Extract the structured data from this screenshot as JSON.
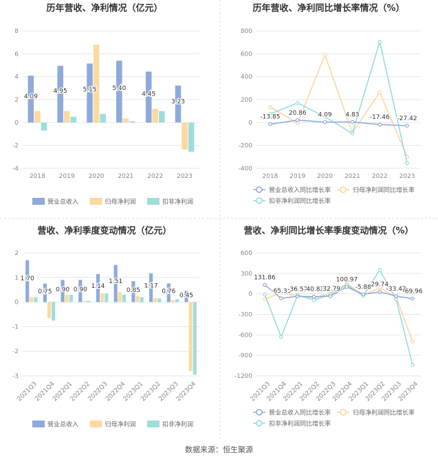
{
  "footer": {
    "source": "数据来源：恒生聚源"
  },
  "colors": {
    "revenue": "#8eaadb",
    "net_profit": "#fdd9a0",
    "deducted_profit": "#9ddedc",
    "axis_text": "#888888",
    "grid": "#e6e6e6",
    "title": "#333333",
    "divider": "#dddddd"
  },
  "chart_data": [
    {
      "type": "bar",
      "title": "历年营收、净利情况（亿元）",
      "categories": [
        "2018",
        "2019",
        "2020",
        "2021",
        "2022",
        "2023"
      ],
      "ylim": [
        -4,
        8
      ],
      "yticks": [
        -4,
        -2,
        0,
        2,
        4,
        6,
        8
      ],
      "grid": true,
      "legend_position": "bottom",
      "series": [
        {
          "name": "营业总收入",
          "values": [
            4.09,
            4.95,
            5.15,
            5.4,
            4.45,
            3.23
          ],
          "labels": [
            "4.09",
            "4.95",
            "5.15",
            "5.40",
            "4.45",
            "3.23"
          ]
        },
        {
          "name": "归母净利润",
          "values": [
            1.0,
            1.0,
            6.8,
            0.35,
            1.2,
            -2.35
          ]
        },
        {
          "name": "扣非净利润",
          "values": [
            -0.7,
            0.5,
            0.75,
            0.1,
            1.0,
            -2.55
          ]
        }
      ]
    },
    {
      "type": "line",
      "title": "历年营收、净利同比增长率情况（%）",
      "categories": [
        "2018",
        "2019",
        "2020",
        "2021",
        "2022",
        "2023"
      ],
      "ylim": [
        -400,
        800
      ],
      "yticks": [
        -400,
        -200,
        0,
        200,
        400,
        600,
        800
      ],
      "grid": true,
      "legend_position": "bottom",
      "series": [
        {
          "name": "营业总收入同比增长率",
          "values": [
            -13.85,
            20.86,
            4.09,
            4.83,
            -17.46,
            -27.42
          ],
          "labels": [
            "-13.85",
            "20.86",
            "4.09",
            "4.83",
            "-17.46",
            "-27.42"
          ]
        },
        {
          "name": "归母净利润同比增长率",
          "values": [
            135,
            -5,
            590,
            -90,
            265,
            -300
          ]
        },
        {
          "name": "扣非净利润同比增长率",
          "values": [
            75,
            170,
            50,
            -95,
            705,
            -355
          ]
        }
      ]
    },
    {
      "type": "bar",
      "title": "营收、净利季度变动情况（亿元）",
      "categories": [
        "2021Q3",
        "2021Q4",
        "2022Q1",
        "2022Q2",
        "2022Q3",
        "2022Q4",
        "2023Q1",
        "2023Q2",
        "2023Q3",
        "2023Q4"
      ],
      "ylim": [
        -3,
        2
      ],
      "yticks": [
        -3,
        -2,
        -1,
        0,
        1,
        2
      ],
      "grid": true,
      "legend_position": "bottom",
      "series": [
        {
          "name": "营业总收入",
          "values": [
            1.7,
            0.75,
            0.9,
            0.9,
            1.14,
            1.51,
            0.85,
            1.17,
            0.76,
            0.45
          ],
          "labels": [
            "1.70",
            "0.75",
            "0.90",
            "0.90",
            "1.14",
            "1.51",
            "0.85",
            "1.17",
            "0.76",
            "0.45"
          ]
        },
        {
          "name": "归母净利润",
          "values": [
            0.2,
            -0.65,
            0.3,
            0.05,
            0.35,
            0.4,
            0.25,
            0.15,
            0.08,
            -2.8
          ]
        },
        {
          "name": "扣非净利润",
          "values": [
            0.2,
            -0.75,
            0.3,
            0.05,
            0.35,
            0.3,
            0.2,
            0.15,
            0.12,
            -2.95
          ]
        }
      ]
    },
    {
      "type": "line",
      "title": "营收、净利同比增长率季度变动情况（%）",
      "categories": [
        "2021Q3",
        "2021Q4",
        "2022Q1",
        "2022Q2",
        "2022Q3",
        "2022Q4",
        "2023Q1",
        "2023Q2",
        "2023Q3",
        "2023Q4"
      ],
      "ylim": [
        -1200,
        600
      ],
      "yticks": [
        -1200,
        -900,
        -600,
        -300,
        0,
        300,
        600
      ],
      "grid": true,
      "legend_position": "bottom",
      "series": [
        {
          "name": "营业总收入同比增长率",
          "values": [
            131.86,
            -65.33,
            -36.53,
            -40.82,
            -32.79,
            100.97,
            -5.88,
            29.74,
            -33.42,
            -69.96
          ],
          "labels": [
            "131.86",
            "-65.33",
            "-36.53",
            "-40.82",
            "-32.79",
            "100.97",
            "-5.88",
            "29.74",
            "-33.42",
            "-69.96"
          ]
        },
        {
          "name": "归母净利润同比增长率",
          "values": [
            -80,
            20,
            -30,
            -60,
            10,
            150,
            -20,
            90,
            -50,
            -700
          ]
        },
        {
          "name": "扣非净利润同比增长率",
          "values": [
            -10,
            -630,
            -20,
            -90,
            -10,
            130,
            -30,
            350,
            -80,
            -1040
          ]
        }
      ]
    }
  ]
}
